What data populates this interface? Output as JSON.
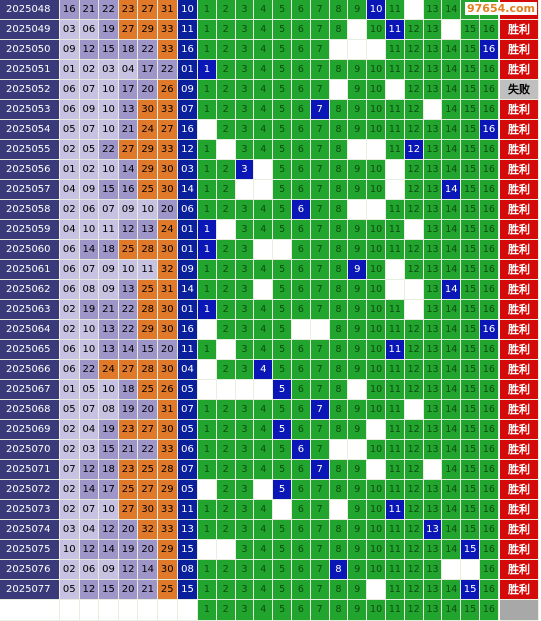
{
  "logo": {
    "text": "97654.com"
  },
  "rows": [
    {
      "period": "2025048",
      "nums": [
        "16",
        "21",
        "22",
        "23",
        "27",
        "31"
      ],
      "blue": "10",
      "hit": 10,
      "result": "胜利"
    },
    {
      "period": "2025049",
      "nums": [
        "03",
        "06",
        "19",
        "27",
        "29",
        "33"
      ],
      "blue": "11",
      "hit": 11,
      "result": "胜利"
    },
    {
      "period": "2025050",
      "nums": [
        "09",
        "12",
        "15",
        "18",
        "22",
        "33"
      ],
      "blue": "16",
      "hit": 16,
      "result": "胜利"
    },
    {
      "period": "2025051",
      "nums": [
        "01",
        "02",
        "03",
        "04",
        "17",
        "22"
      ],
      "blue": "01",
      "hit": 1,
      "result": "胜利"
    },
    {
      "period": "2025052",
      "nums": [
        "06",
        "07",
        "10",
        "17",
        "20",
        "26"
      ],
      "blue": "09",
      "hit": 0,
      "result": "失败"
    },
    {
      "period": "2025053",
      "nums": [
        "06",
        "09",
        "10",
        "13",
        "30",
        "33"
      ],
      "blue": "07",
      "hit": 7,
      "result": "胜利"
    },
    {
      "period": "2025054",
      "nums": [
        "05",
        "07",
        "10",
        "21",
        "24",
        "27"
      ],
      "blue": "16",
      "hit": 16,
      "result": "胜利"
    },
    {
      "period": "2025055",
      "nums": [
        "02",
        "05",
        "22",
        "27",
        "29",
        "33"
      ],
      "blue": "12",
      "hit": 12,
      "result": "胜利"
    },
    {
      "period": "2025056",
      "nums": [
        "01",
        "02",
        "10",
        "14",
        "29",
        "30"
      ],
      "blue": "03",
      "hit": 3,
      "result": "胜利"
    },
    {
      "period": "2025057",
      "nums": [
        "04",
        "09",
        "15",
        "16",
        "25",
        "30"
      ],
      "blue": "14",
      "hit": 14,
      "result": "胜利"
    },
    {
      "period": "2025058",
      "nums": [
        "02",
        "06",
        "07",
        "09",
        "10",
        "20"
      ],
      "blue": "06",
      "hit": 6,
      "result": "胜利"
    },
    {
      "period": "2025059",
      "nums": [
        "04",
        "10",
        "11",
        "12",
        "13",
        "24"
      ],
      "blue": "01",
      "hit": 1,
      "result": "胜利"
    },
    {
      "period": "2025060",
      "nums": [
        "06",
        "14",
        "18",
        "25",
        "28",
        "30"
      ],
      "blue": "01",
      "hit": 1,
      "result": "胜利"
    },
    {
      "period": "2025061",
      "nums": [
        "06",
        "07",
        "09",
        "10",
        "11",
        "32"
      ],
      "blue": "09",
      "hit": 9,
      "result": "胜利"
    },
    {
      "period": "2025062",
      "nums": [
        "06",
        "08",
        "09",
        "13",
        "25",
        "31"
      ],
      "blue": "14",
      "hit": 14,
      "result": "胜利"
    },
    {
      "period": "2025063",
      "nums": [
        "02",
        "19",
        "21",
        "22",
        "28",
        "30"
      ],
      "blue": "01",
      "hit": 1,
      "result": "胜利"
    },
    {
      "period": "2025064",
      "nums": [
        "02",
        "10",
        "13",
        "22",
        "29",
        "30"
      ],
      "blue": "16",
      "hit": 16,
      "result": "胜利"
    },
    {
      "period": "2025065",
      "nums": [
        "06",
        "10",
        "13",
        "14",
        "15",
        "20"
      ],
      "blue": "11",
      "hit": 11,
      "result": "胜利"
    },
    {
      "period": "2025066",
      "nums": [
        "06",
        "22",
        "24",
        "27",
        "28",
        "30"
      ],
      "blue": "04",
      "hit": 4,
      "result": "胜利"
    },
    {
      "period": "2025067",
      "nums": [
        "01",
        "05",
        "10",
        "18",
        "25",
        "26"
      ],
      "blue": "05",
      "hit": 5,
      "result": "胜利"
    },
    {
      "period": "2025068",
      "nums": [
        "05",
        "07",
        "08",
        "19",
        "20",
        "31"
      ],
      "blue": "07",
      "hit": 7,
      "result": "胜利"
    },
    {
      "period": "2025069",
      "nums": [
        "02",
        "04",
        "19",
        "23",
        "27",
        "30"
      ],
      "blue": "05",
      "hit": 5,
      "result": "胜利"
    },
    {
      "period": "2025070",
      "nums": [
        "02",
        "03",
        "15",
        "21",
        "22",
        "33"
      ],
      "blue": "06",
      "hit": 6,
      "result": "胜利"
    },
    {
      "period": "2025071",
      "nums": [
        "07",
        "12",
        "18",
        "23",
        "25",
        "28"
      ],
      "blue": "07",
      "hit": 7,
      "result": "胜利"
    },
    {
      "period": "2025072",
      "nums": [
        "02",
        "14",
        "17",
        "25",
        "27",
        "29"
      ],
      "blue": "05",
      "hit": 5,
      "result": "胜利"
    },
    {
      "period": "2025073",
      "nums": [
        "02",
        "07",
        "10",
        "27",
        "30",
        "33"
      ],
      "blue": "11",
      "hit": 11,
      "result": "胜利"
    },
    {
      "period": "2025074",
      "nums": [
        "03",
        "04",
        "12",
        "20",
        "32",
        "33"
      ],
      "blue": "13",
      "hit": 13,
      "result": "胜利"
    },
    {
      "period": "2025075",
      "nums": [
        "10",
        "12",
        "14",
        "19",
        "20",
        "29"
      ],
      "blue": "15",
      "hit": 15,
      "result": "胜利"
    },
    {
      "period": "2025076",
      "nums": [
        "02",
        "06",
        "09",
        "12",
        "14",
        "30"
      ],
      "blue": "08",
      "hit": 8,
      "result": "胜利"
    },
    {
      "period": "2025077",
      "nums": [
        "05",
        "12",
        "15",
        "20",
        "21",
        "25"
      ],
      "blue": "15",
      "hit": 15,
      "result": "胜利"
    }
  ],
  "white_cells": [
    [
      10,
      12
    ],
    [
      9,
      14
    ],
    [
      8,
      9,
      10
    ],
    [],
    [
      8,
      11
    ],
    [
      13
    ],
    [
      1
    ],
    [
      2,
      9,
      10
    ],
    [
      4,
      11
    ],
    [
      3,
      4,
      11
    ],
    [
      9,
      10
    ],
    [
      2,
      12
    ],
    [
      4,
      5
    ],
    [
      11
    ],
    [
      4,
      11,
      12
    ],
    [
      12
    ],
    [
      1,
      6,
      7
    ],
    [
      2
    ],
    [
      1
    ],
    [
      1,
      2,
      3,
      4,
      9
    ],
    [
      12
    ],
    [
      10
    ],
    [
      8,
      9
    ],
    [
      10,
      13
    ],
    [
      1,
      4
    ],
    [
      5,
      8
    ],
    [],
    [
      1,
      2
    ],
    [
      14,
      15
    ],
    [
      10
    ]
  ],
  "colors": {
    "lavender": "#c7c2e1",
    "purple": "#9e95c8",
    "orange": "#e07a2a",
    "green": "#21a52e",
    "hit": "#0a16b6",
    "win": "#d40a0a",
    "lose": "#bfbfbf"
  },
  "col_labels": [
    "1",
    "2",
    "3",
    "4",
    "5",
    "6",
    "7",
    "8",
    "9",
    "10",
    "11",
    "12",
    "13",
    "14",
    "15",
    "16"
  ]
}
